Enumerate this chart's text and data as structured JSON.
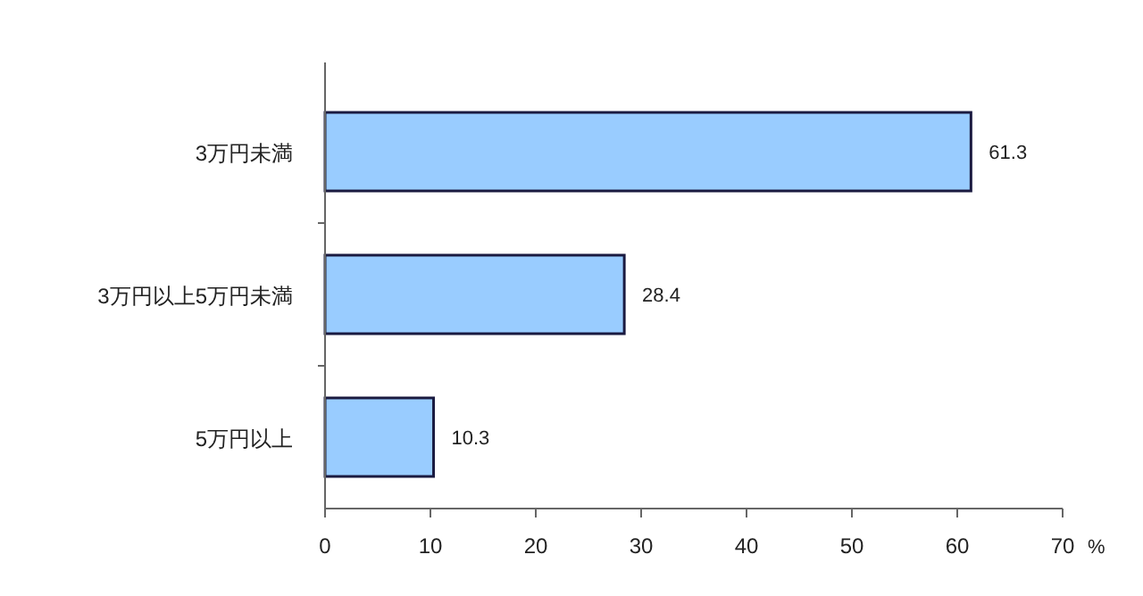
{
  "chart_data": {
    "type": "bar",
    "orientation": "horizontal",
    "categories": [
      "3万円未満",
      "3万円以上5万円未満",
      "5万円以上"
    ],
    "values": [
      61.3,
      28.4,
      10.3
    ],
    "color": "#99ccff",
    "data_labels": true,
    "xlim": [
      0,
      70
    ],
    "xticks": [
      0,
      10,
      20,
      30,
      40,
      50,
      60,
      70
    ],
    "xlabel": "%",
    "grid": false
  }
}
